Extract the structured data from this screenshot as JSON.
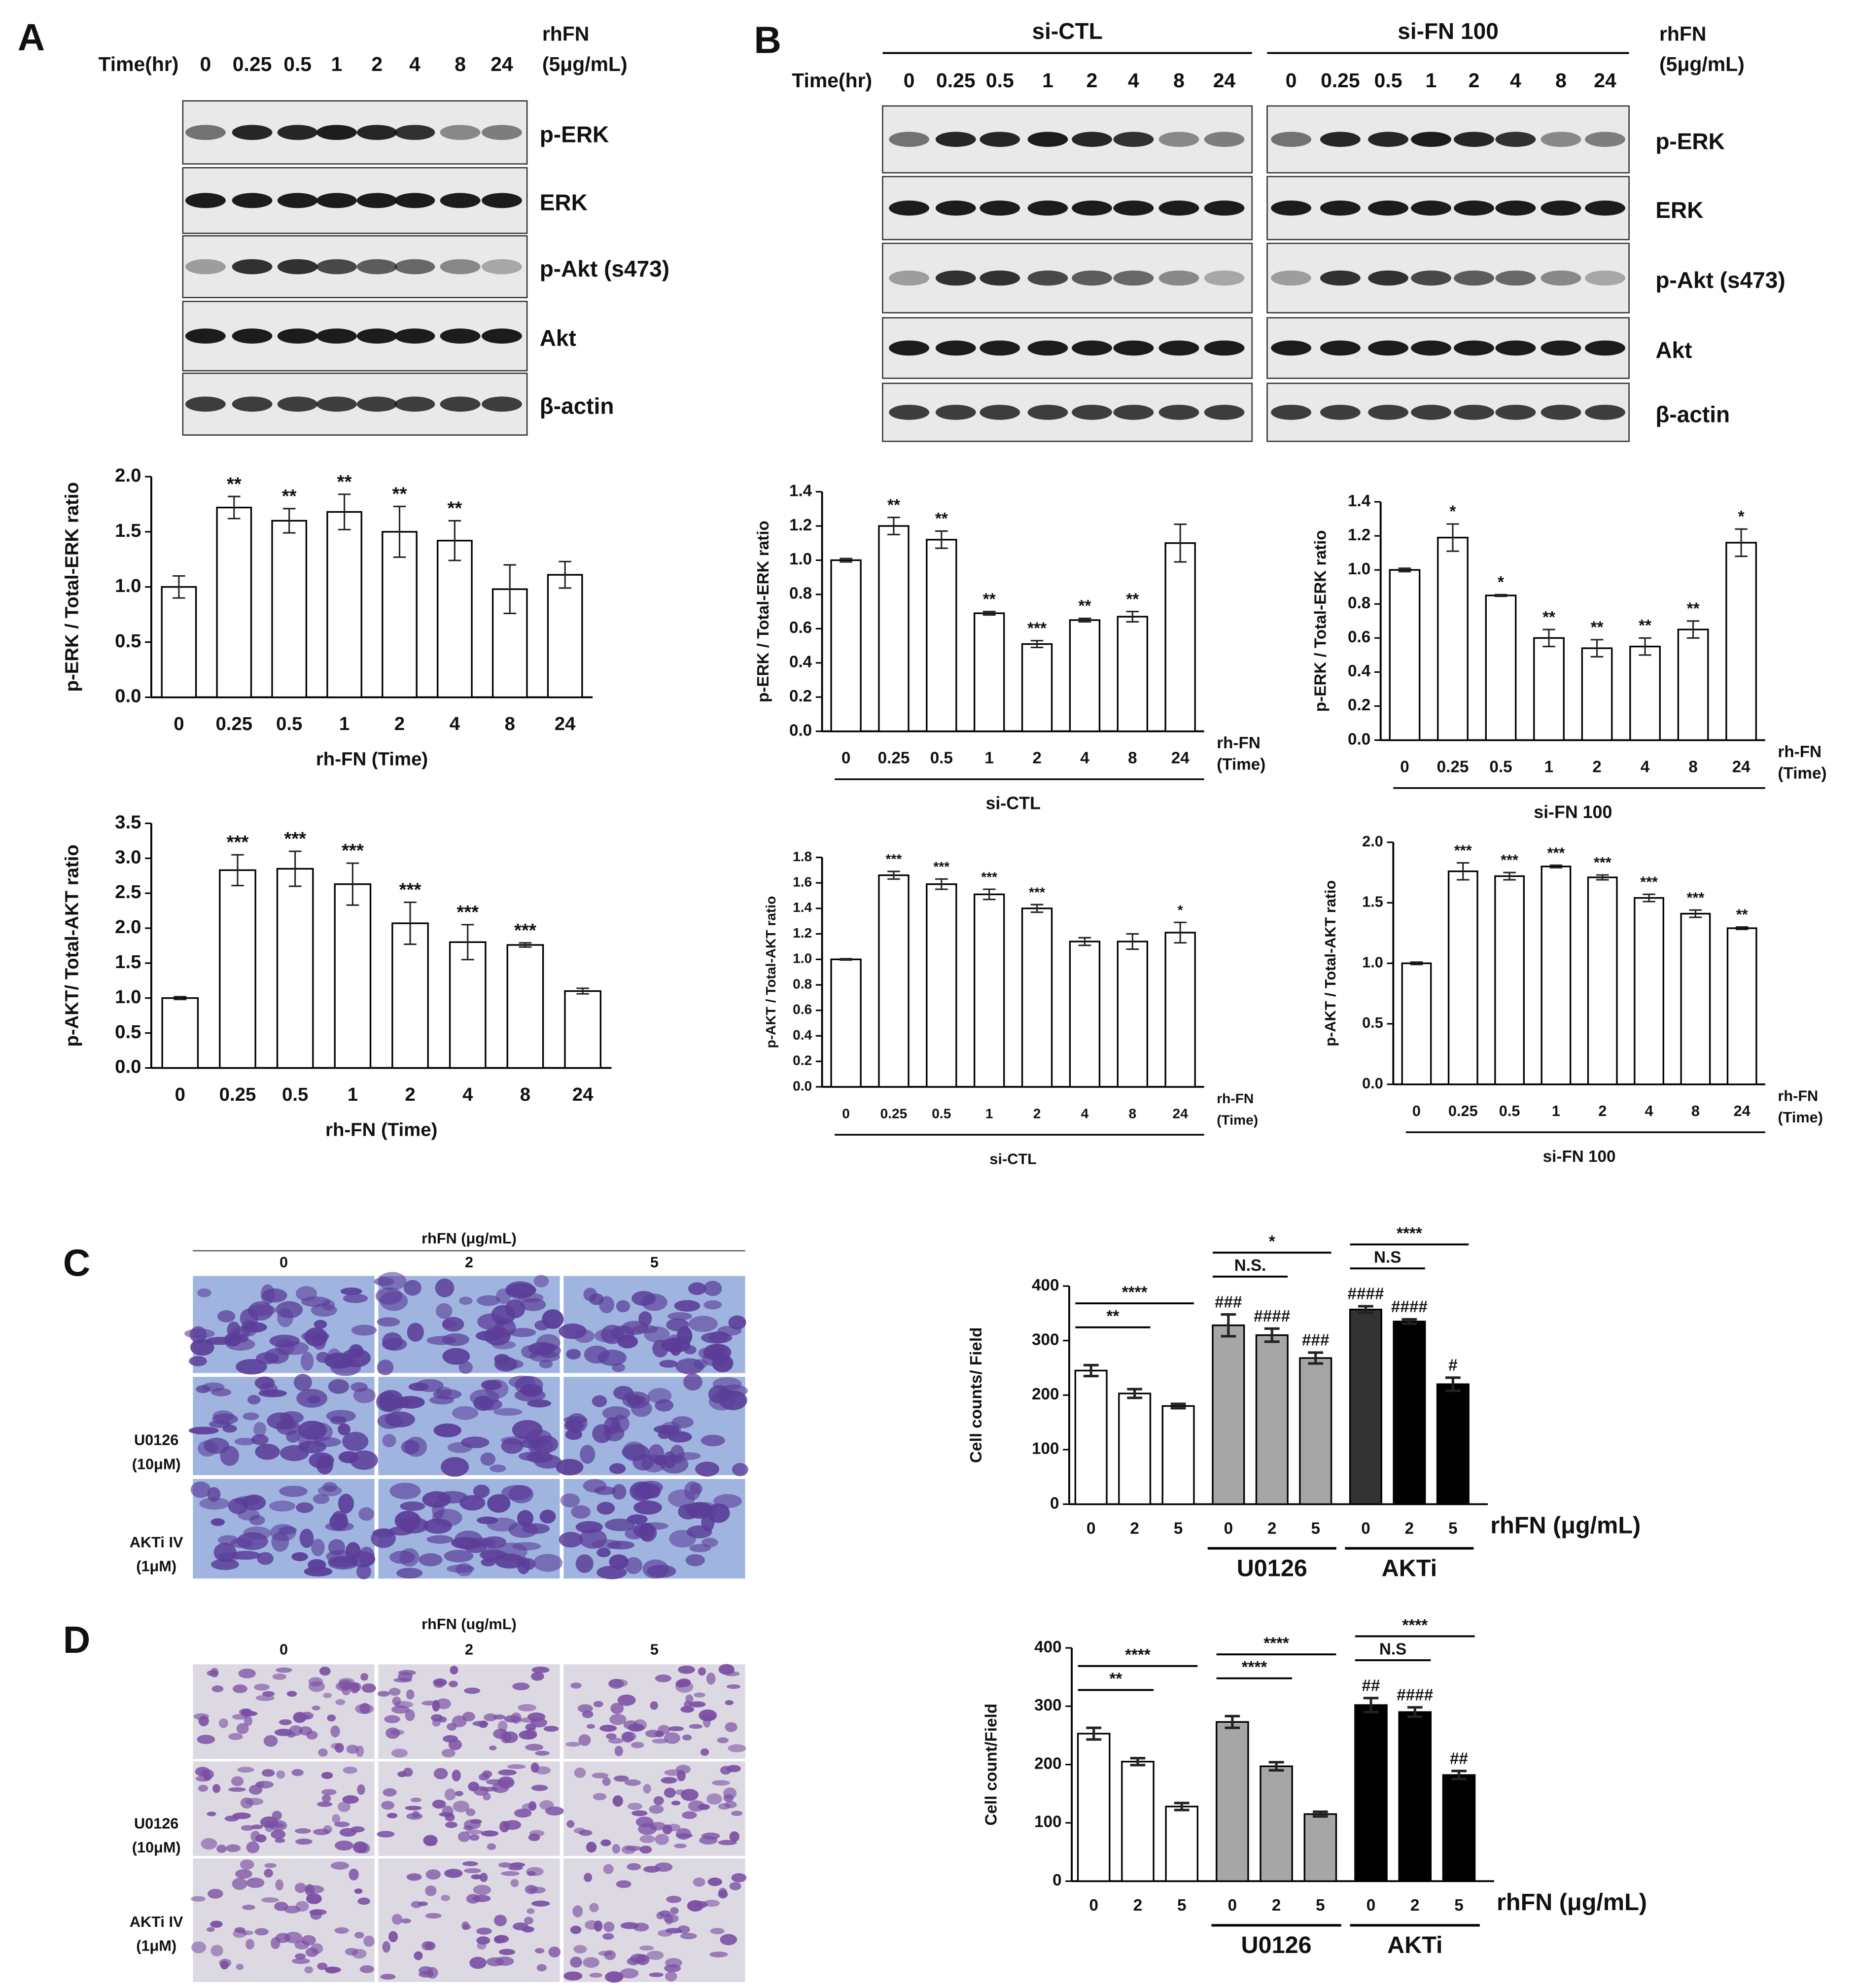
{
  "panels": {
    "labels": [
      "A",
      "B",
      "C",
      "D"
    ]
  },
  "blots": [
    {
      "time_label": "Time(hr)",
      "lanes": [
        "0",
        "0.25",
        "0.5",
        "1",
        "2",
        "4",
        "8",
        "24"
      ],
      "treatment": [
        "rhFN",
        "(5μg/mL)"
      ],
      "proteins": [
        "p-ERK",
        "ERK",
        "p-Akt (s473)",
        "Akt",
        "β-actin"
      ]
    },
    {
      "groups": [
        "si-CTL",
        "si-FN 100"
      ],
      "time_label": "Time(hr)",
      "lanes": [
        "0",
        "0.25",
        "0.5",
        "1",
        "2",
        "4",
        "8",
        "24"
      ],
      "treatment": [
        "rhFN",
        "(5μg/mL)"
      ],
      "proteins": [
        "p-ERK",
        "ERK",
        "p-Akt (s473)",
        "Akt",
        "β-actin"
      ]
    }
  ],
  "micrographs": [
    {
      "title": "rhFN (μg/mL)",
      "columns": [
        "0",
        "2",
        "5"
      ],
      "row_labels": [
        [
          "U0126",
          "(10μM)"
        ],
        [
          "AKTi IV",
          "(1μM)"
        ]
      ]
    },
    {
      "title": "rhFN (ug/mL)",
      "columns": [
        "0",
        "2",
        "5"
      ],
      "row_labels": [
        [
          "U0126",
          "(10μM)"
        ],
        [
          "AKTi IV",
          "(1μM)"
        ]
      ]
    }
  ],
  "chart_data": [
    {
      "type": "bar",
      "ylabel": "p-ERK / Total-ERK ratio",
      "xlabel": "rh-FN (Time)",
      "categories": [
        "0",
        "0.25",
        "0.5",
        "1",
        "2",
        "4",
        "8",
        "24"
      ],
      "values": [
        1.0,
        1.72,
        1.6,
        1.68,
        1.5,
        1.42,
        0.98,
        1.11
      ],
      "errors": [
        0.1,
        0.1,
        0.11,
        0.16,
        0.23,
        0.18,
        0.22,
        0.12
      ],
      "annotations": [
        null,
        "**",
        "**",
        "**",
        "**",
        "**",
        null,
        null
      ],
      "color": "#ffffff",
      "ylim": [
        0,
        2
      ],
      "yticks": [
        {
          "value": 0,
          "label": "0.0"
        },
        0.5,
        {
          "value": 1,
          "label": "1.0"
        },
        1.5,
        {
          "value": 2,
          "label": "2.0"
        }
      ]
    },
    {
      "type": "bar",
      "ylabel": "p-AKT/ Total-AKT ratio",
      "xlabel": "rh-FN (Time)",
      "categories": [
        "0",
        "0.25",
        "0.5",
        "1",
        "2",
        "4",
        "8",
        "24"
      ],
      "values": [
        1.0,
        2.83,
        2.85,
        2.63,
        2.07,
        1.8,
        1.76,
        1.1
      ],
      "errors": [
        0.02,
        0.22,
        0.25,
        0.3,
        0.3,
        0.25,
        0.03,
        0.04
      ],
      "annotations": [
        null,
        "***",
        "***",
        "***",
        "***",
        "***",
        "***",
        null
      ],
      "color": "#ffffff",
      "ylim": [
        0,
        3.5
      ],
      "yticks": [
        {
          "value": 0,
          "label": "0.0"
        },
        0.5,
        {
          "value": 1,
          "label": "1.0"
        },
        1.5,
        {
          "value": 2,
          "label": "2.0"
        },
        2.5,
        {
          "value": 3,
          "label": "3.0"
        },
        3.5
      ]
    },
    {
      "type": "bar",
      "ylabel": "p-ERK / Total-ERK ratio",
      "xlabel": [
        "rh-FN",
        "(Time)"
      ],
      "group_label": "si-CTL",
      "categories": [
        "0",
        "0.25",
        "0.5",
        "1",
        "2",
        "4",
        "8",
        "24"
      ],
      "values": [
        1.0,
        1.2,
        1.12,
        0.69,
        0.51,
        0.65,
        0.67,
        1.1
      ],
      "errors": [
        0.01,
        0.05,
        0.05,
        0.01,
        0.02,
        0.01,
        0.03,
        0.11
      ],
      "annotations": [
        null,
        "**",
        "**",
        "**",
        "***",
        "**",
        "**",
        null
      ],
      "color": "#ffffff",
      "ylim": [
        0,
        1.4
      ],
      "yticks": [
        {
          "value": 0,
          "label": "0.0"
        },
        0.2,
        0.4,
        0.6,
        0.8,
        {
          "value": 1,
          "label": "1.0"
        },
        1.2,
        1.4
      ]
    },
    {
      "type": "bar",
      "ylabel": "p-ERK / Total-ERK ratio",
      "xlabel": [
        "rh-FN",
        "(Time)"
      ],
      "group_label": "si-FN 100",
      "categories": [
        "0",
        "0.25",
        "0.5",
        "1",
        "2",
        "4",
        "8",
        "24"
      ],
      "values": [
        1.0,
        1.19,
        0.85,
        0.6,
        0.54,
        0.55,
        0.65,
        1.16
      ],
      "errors": [
        0.01,
        0.08,
        0.005,
        0.05,
        0.05,
        0.05,
        0.05,
        0.08
      ],
      "annotations": [
        null,
        "*",
        "*",
        "**",
        "**",
        "**",
        "**",
        "*"
      ],
      "color": "#ffffff",
      "ylim": [
        0,
        1.4
      ],
      "yticks": [
        {
          "value": 0,
          "label": "0.0"
        },
        0.2,
        0.4,
        0.6,
        0.8,
        {
          "value": 1,
          "label": "1.0"
        },
        1.2,
        1.4
      ]
    },
    {
      "type": "bar",
      "ylabel": "p-AKT / Total-AKT ratio",
      "xlabel": [
        "rh-FN",
        "(Time)"
      ],
      "group_label": "si-CTL",
      "categories": [
        "0",
        "0.25",
        "0.5",
        "1",
        "2",
        "4",
        "8",
        "24"
      ],
      "values": [
        1.0,
        1.66,
        1.59,
        1.51,
        1.4,
        1.14,
        1.14,
        1.21
      ],
      "errors": [
        0.005,
        0.03,
        0.04,
        0.04,
        0.03,
        0.03,
        0.06,
        0.08
      ],
      "annotations": [
        null,
        "***",
        "***",
        "***",
        "***",
        null,
        null,
        "*"
      ],
      "color": "#ffffff",
      "ylim": [
        0,
        1.8
      ],
      "yticks": [
        {
          "value": 0,
          "label": "0.0"
        },
        0.2,
        0.4,
        0.6,
        0.8,
        {
          "value": 1,
          "label": "1.0"
        },
        1.2,
        1.4,
        1.6,
        1.8
      ]
    },
    {
      "type": "bar",
      "ylabel": "p-AKT / Total-AKT ratio",
      "xlabel": [
        "rh-FN",
        "(Time)"
      ],
      "group_label": "si-FN 100",
      "categories": [
        "0",
        "0.25",
        "0.5",
        "1",
        "2",
        "4",
        "8",
        "24"
      ],
      "values": [
        1.0,
        1.76,
        1.72,
        1.8,
        1.71,
        1.54,
        1.41,
        1.29
      ],
      "errors": [
        0.01,
        0.07,
        0.03,
        0.01,
        0.02,
        0.03,
        0.03,
        0.01
      ],
      "annotations": [
        null,
        "***",
        "***",
        "***",
        "***",
        "***",
        "***",
        "**"
      ],
      "color": "#ffffff",
      "ylim": [
        0,
        2
      ],
      "yticks": [
        {
          "value": 0,
          "label": "0.0"
        },
        0.5,
        {
          "value": 1,
          "label": "1.0"
        },
        1.5,
        {
          "value": 2,
          "label": "2.0"
        }
      ]
    },
    {
      "type": "bar",
      "ylabel": "Cell counts/ Field",
      "xlabel": "rhFN (μg/mL)",
      "group_labels": [
        "U0126",
        "AKTi"
      ],
      "categories": [
        "0",
        "2",
        "5",
        "0",
        "2",
        "5",
        "0",
        "2",
        "5"
      ],
      "values": [
        245,
        203,
        180,
        328,
        310,
        268,
        357,
        335,
        220
      ],
      "errors": [
        10,
        8,
        4,
        20,
        12,
        10,
        6,
        4,
        12
      ],
      "annotations": [
        null,
        null,
        null,
        "###",
        "####",
        "###",
        "####",
        "####",
        "#"
      ],
      "colors": [
        "#ffffff",
        "#ffffff",
        "#ffffff",
        "#a6a6a6",
        "#a6a6a6",
        "#a6a6a6",
        "#333333",
        "#000000",
        "#000000"
      ],
      "comparisons": [
        {
          "label": "**",
          "between": [
            0,
            1
          ]
        },
        {
          "label": "****",
          "between": [
            0,
            2
          ]
        },
        {
          "label": "N.S.",
          "between": [
            3,
            4
          ]
        },
        {
          "label": "*",
          "between": [
            3,
            5
          ]
        },
        {
          "label": "N.S",
          "between": [
            6,
            7
          ]
        },
        {
          "label": "****",
          "between": [
            6,
            8
          ]
        }
      ],
      "ylim": [
        0,
        400
      ],
      "yticks": [
        0,
        100,
        200,
        300,
        400
      ]
    },
    {
      "type": "bar",
      "ylabel": "Cell count/Field",
      "xlabel": "rhFN (μg/mL)",
      "group_labels": [
        "U0126",
        "AKTi"
      ],
      "categories": [
        "0",
        "2",
        "5",
        "0",
        "2",
        "5",
        "0",
        "2",
        "5"
      ],
      "values": [
        253,
        205,
        128,
        273,
        197,
        115,
        302,
        290,
        182
      ],
      "errors": [
        10,
        6,
        6,
        10,
        7,
        4,
        12,
        8,
        7
      ],
      "annotations": [
        null,
        null,
        null,
        null,
        null,
        null,
        "##",
        "####",
        "##"
      ],
      "colors": [
        "#ffffff",
        "#ffffff",
        "#ffffff",
        "#a6a6a6",
        "#a6a6a6",
        "#a6a6a6",
        "#000000",
        "#000000",
        "#000000"
      ],
      "comparisons": [
        {
          "label": "**",
          "between": [
            0,
            1
          ]
        },
        {
          "label": "****",
          "between": [
            0,
            2
          ]
        },
        {
          "label": "****",
          "between": [
            3,
            4
          ]
        },
        {
          "label": "****",
          "between": [
            3,
            5
          ]
        },
        {
          "label": "N.S",
          "between": [
            6,
            7
          ]
        },
        {
          "label": "****",
          "between": [
            6,
            8
          ]
        }
      ],
      "ylim": [
        0,
        400
      ],
      "yticks": [
        0,
        100,
        200,
        300,
        400
      ]
    }
  ]
}
